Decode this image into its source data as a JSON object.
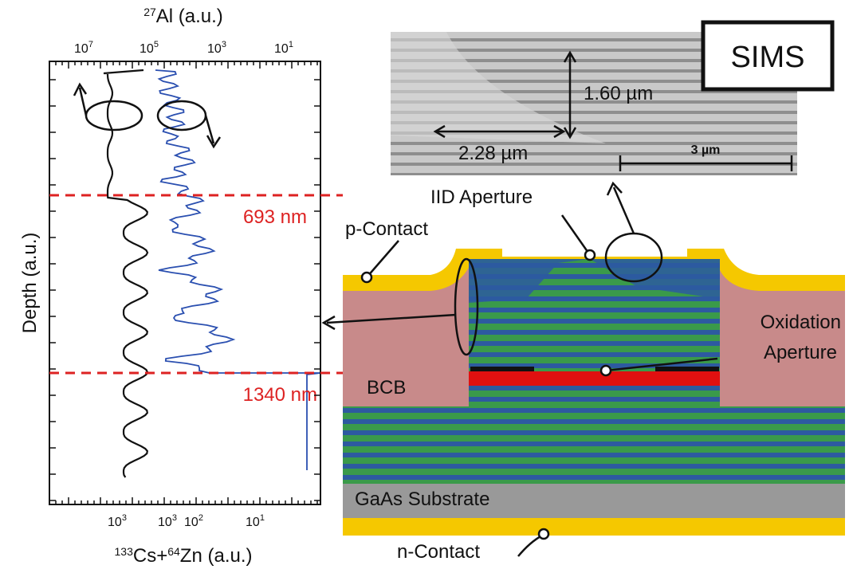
{
  "plot": {
    "top_axis": {
      "sup": "27",
      "label": "Al (a.u.)",
      "ticks": [
        {
          "base": "10",
          "exp": "7"
        },
        {
          "base": "10",
          "exp": "5"
        },
        {
          "base": "10",
          "exp": "3"
        },
        {
          "base": "10",
          "exp": "1"
        }
      ]
    },
    "bottom_axis": {
      "sup1": "133",
      "mid": "Cs+",
      "sup2": "64",
      "label": "Zn (a.u.)",
      "ticks": [
        {
          "base": "10",
          "exp": "3"
        },
        {
          "base": "10",
          "exp": "3"
        },
        {
          "base": "10",
          "exp": "2"
        },
        {
          "base": "10",
          "exp": "1"
        }
      ]
    },
    "y_label": "Depth (a.u.)",
    "markers": [
      "693 nm",
      "1340 nm"
    ]
  },
  "sem": {
    "badge": "SIMS",
    "vertical": "1.60 µm",
    "horizontal": "2.28 µm",
    "scale": "3 µm"
  },
  "device": {
    "iid": "IID Aperture",
    "p_contact": "p-Contact",
    "bcb": "BCB",
    "oxidation": [
      "Oxidation",
      "Aperture"
    ],
    "substrate": "GaAs Substrate",
    "n_contact": "n-Contact"
  }
}
